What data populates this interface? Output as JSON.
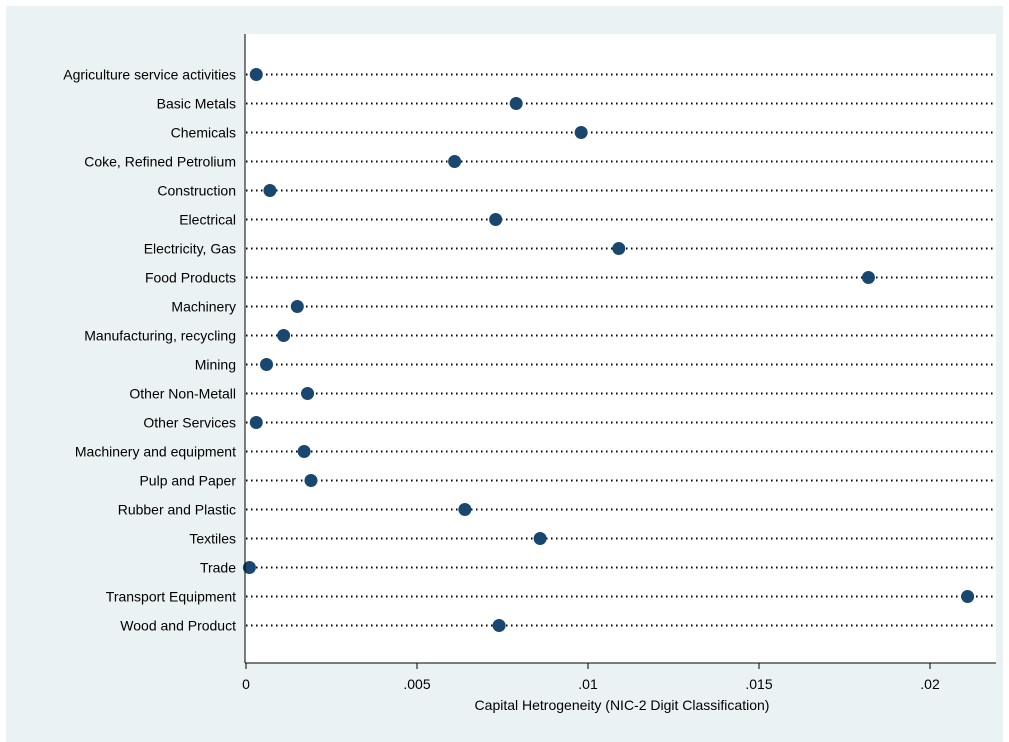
{
  "chart_data": {
    "type": "scatter",
    "style": "dot-plot",
    "xlabel": "Capital Hetrogeneity (NIC-2 Digit Classification)",
    "ylabel": "",
    "xlim": [
      0,
      0.022
    ],
    "xticks": [
      0,
      0.005,
      0.01,
      0.015,
      0.02
    ],
    "xtick_labels": [
      "0",
      ".005",
      ".01",
      ".015",
      ".02"
    ],
    "grid": false,
    "legend": "none",
    "colors": {
      "plot_background": "#ffffff",
      "outer_background": "#eaf2f3",
      "marker": "#1a476f",
      "dotted_line": "#000000"
    },
    "categories": [
      "Agriculture service activities",
      "Basic Metals",
      "Chemicals",
      "Coke, Refined Petrolium",
      "Construction",
      "Electrical",
      "Electricity, Gas",
      "Food Products",
      "Machinery",
      "Manufacturing, recycling",
      "Mining",
      "Other Non-Metall",
      "Other Services",
      "Machinery and equipment",
      "Pulp and Paper",
      "Rubber and Plastic",
      "Textiles",
      "Trade",
      "Transport Equipment",
      "Wood and Product"
    ],
    "values": [
      0.0003,
      0.0079,
      0.0098,
      0.0061,
      0.0007,
      0.0073,
      0.0109,
      0.0182,
      0.0015,
      0.0011,
      0.0006,
      0.0018,
      0.0003,
      0.0017,
      0.0019,
      0.0064,
      0.0086,
      0.0001,
      0.0211,
      0.0074
    ]
  }
}
